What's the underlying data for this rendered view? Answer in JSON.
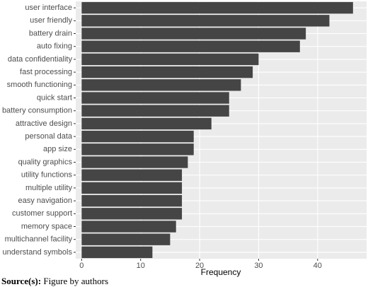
{
  "chart_data": {
    "type": "hbar",
    "categories": [
      "user interface",
      "user friendly",
      "battery drain",
      "auto fixing",
      "data confidentiality",
      "fast processing",
      "smooth functioning",
      "quick start",
      "battery consumption",
      "attractive design",
      "personal data",
      "app size",
      "quality graphics",
      "utility functions",
      "multiple utility",
      "easy navigation",
      "customer support",
      "memory space",
      "multichannel facility",
      "understand symbols"
    ],
    "values": [
      46,
      42,
      38,
      37,
      30,
      29,
      27,
      25,
      25,
      22,
      19,
      19,
      18,
      17,
      17,
      17,
      17,
      16,
      15,
      12
    ],
    "color": "#454545",
    "x_label": "Frequency",
    "xlim": [
      -1,
      48.3
    ],
    "xticks": [
      0,
      10,
      20,
      30,
      40
    ],
    "grid": true,
    "caption_label": "Source(s):",
    "caption_text": "Figure by authors"
  }
}
